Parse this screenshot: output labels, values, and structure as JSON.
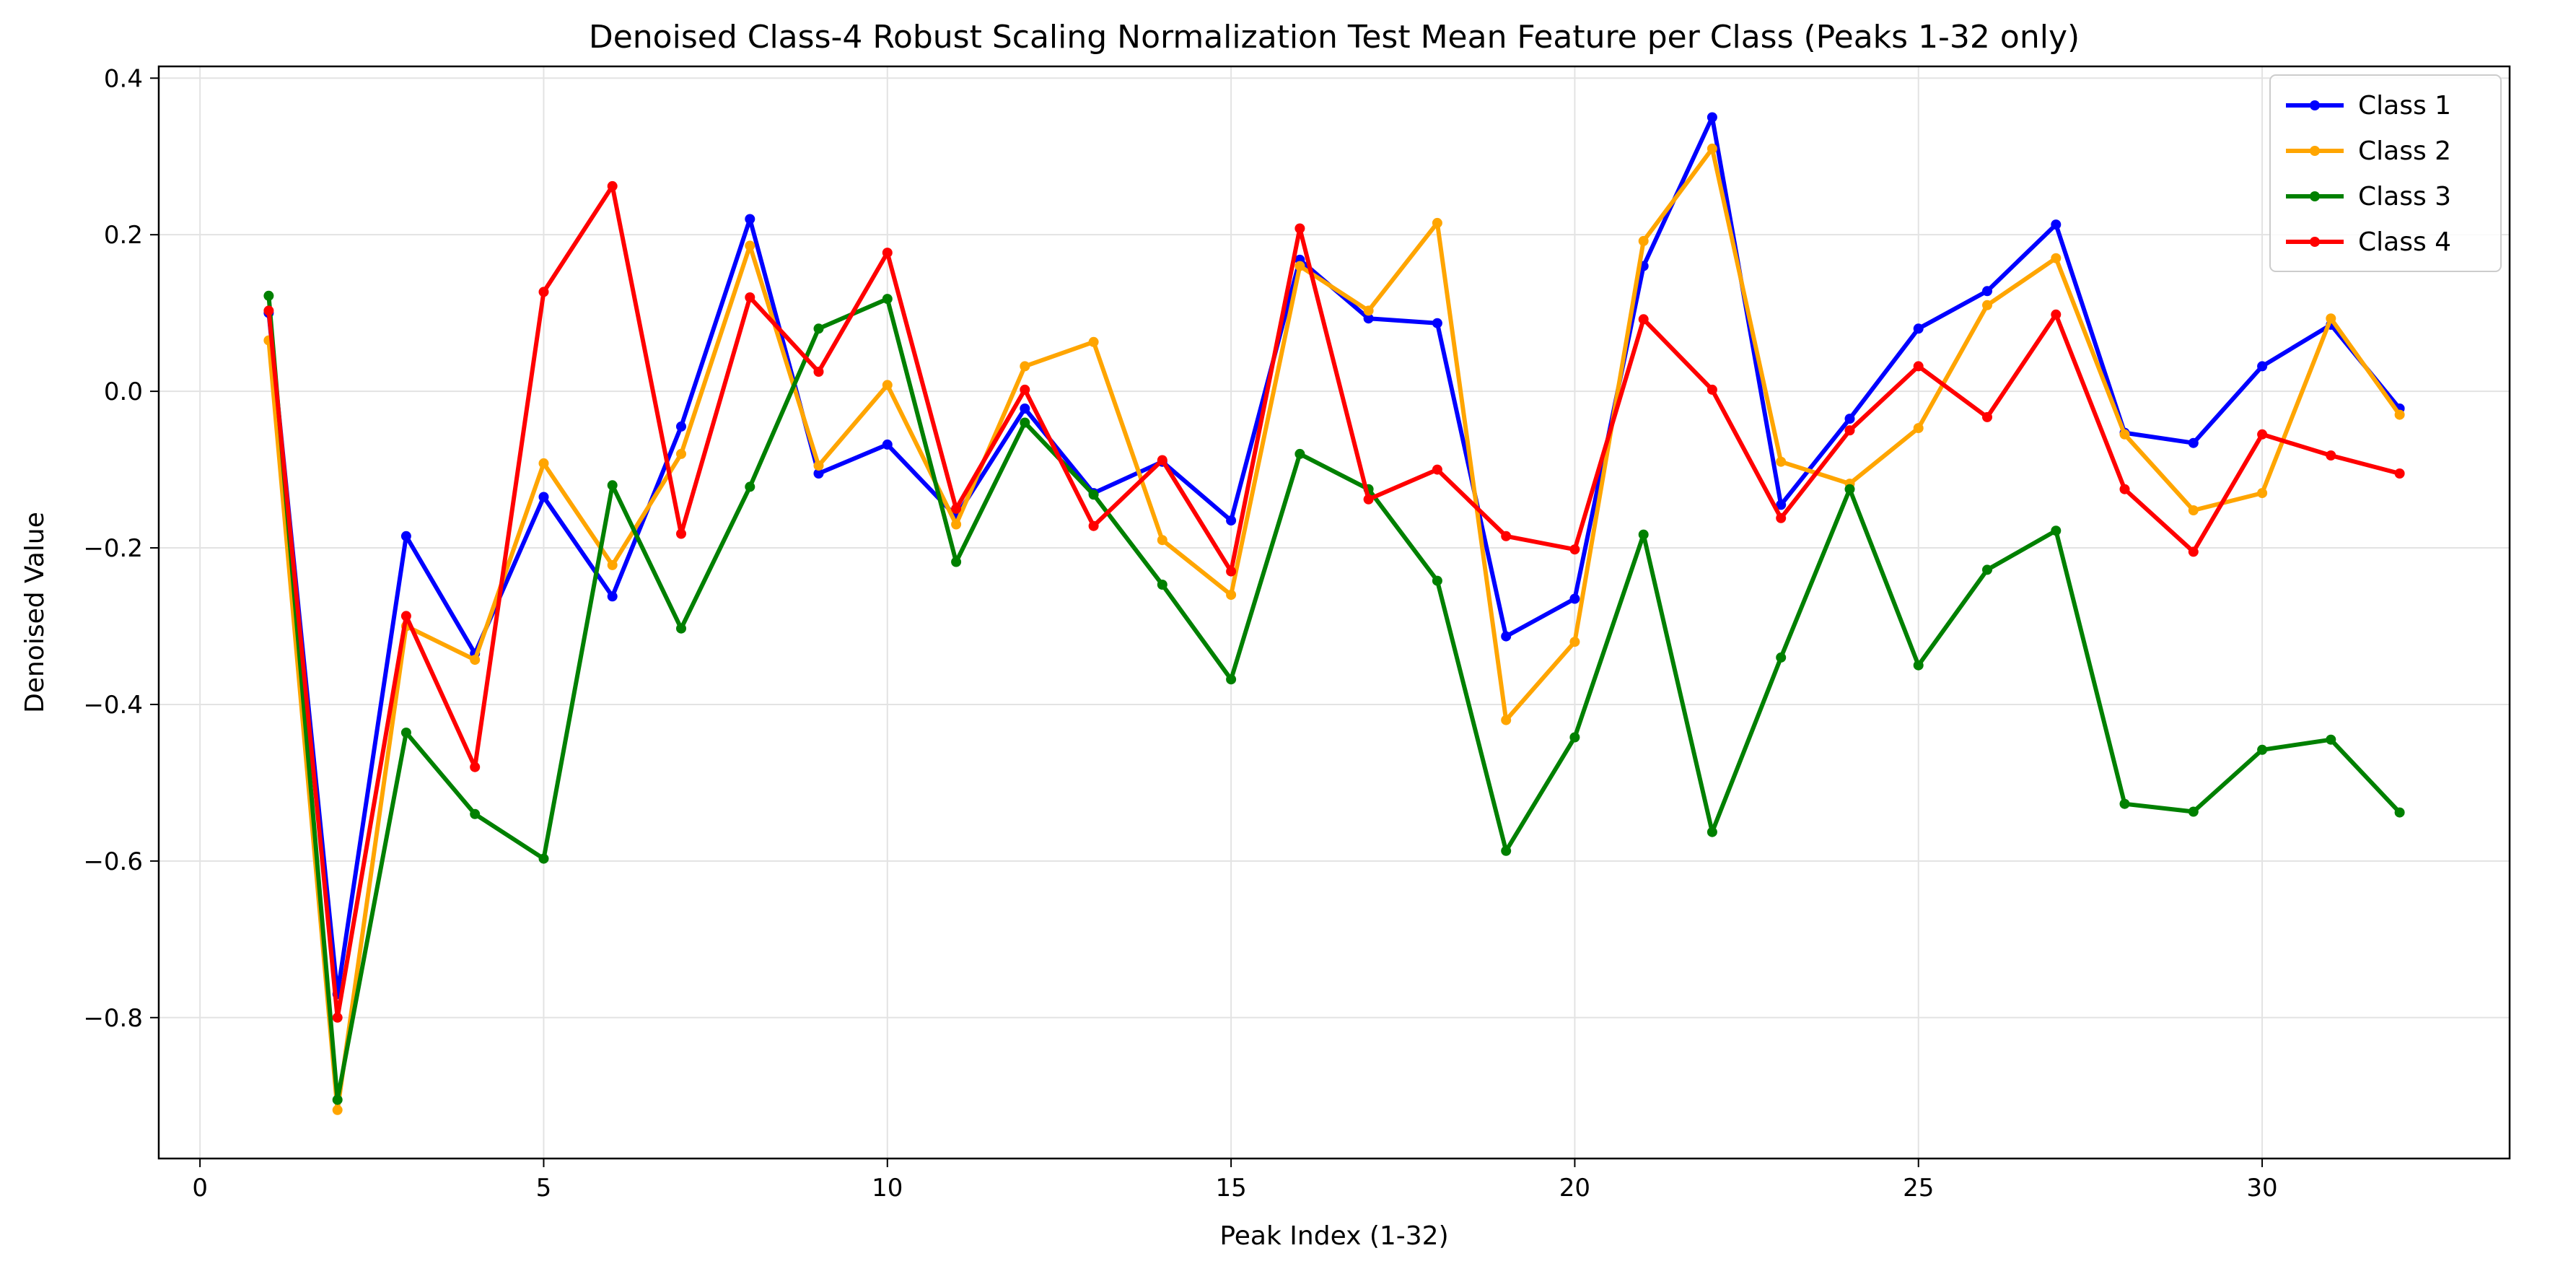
{
  "chart_data": {
    "type": "line",
    "title": "Denoised Class-4 Robust Scaling Normalization Test Mean Feature per Class (Peaks 1-32 only)",
    "xlabel": "Peak Index (1-32)",
    "ylabel": "Denoised Value",
    "xlim": [
      -0.6,
      33.6
    ],
    "ylim": [
      -0.98,
      0.415
    ],
    "xticks": [
      0,
      5,
      10,
      15,
      20,
      25,
      30
    ],
    "yticks": [
      -0.8,
      -0.6,
      -0.4,
      -0.2,
      0.0,
      0.2,
      0.4
    ],
    "ytick_labels": [
      "−0.8",
      "−0.6",
      "−0.4",
      "−0.2",
      "0.0",
      "0.2",
      "0.4"
    ],
    "grid": true,
    "legend_position": "top-right",
    "x": [
      1,
      2,
      3,
      4,
      5,
      6,
      7,
      8,
      9,
      10,
      11,
      12,
      13,
      14,
      15,
      16,
      17,
      18,
      19,
      20,
      21,
      22,
      23,
      24,
      25,
      26,
      27,
      28,
      29,
      30,
      31,
      32
    ],
    "series": [
      {
        "name": "Class 1",
        "color": "#0000ff",
        "values": [
          0.1,
          -0.77,
          -0.185,
          -0.335,
          -0.135,
          -0.262,
          -0.045,
          0.22,
          -0.105,
          -0.068,
          -0.16,
          -0.022,
          -0.13,
          -0.09,
          -0.165,
          0.168,
          0.093,
          0.087,
          -0.313,
          -0.265,
          0.16,
          0.35,
          -0.145,
          -0.035,
          0.08,
          0.128,
          0.213,
          -0.053,
          -0.066,
          0.032,
          0.085,
          -0.022
        ]
      },
      {
        "name": "Class 2",
        "color": "#ffa500",
        "values": [
          0.065,
          -0.918,
          -0.3,
          -0.343,
          -0.092,
          -0.222,
          -0.08,
          0.186,
          -0.095,
          0.008,
          -0.17,
          0.032,
          0.063,
          -0.19,
          -0.26,
          0.16,
          0.103,
          0.215,
          -0.42,
          -0.32,
          0.192,
          0.31,
          -0.09,
          -0.118,
          -0.047,
          0.11,
          0.17,
          -0.055,
          -0.152,
          -0.13,
          0.093,
          -0.03
        ]
      },
      {
        "name": "Class 3",
        "color": "#008000",
        "values": [
          0.122,
          -0.905,
          -0.436,
          -0.54,
          -0.597,
          -0.12,
          -0.303,
          -0.122,
          0.08,
          0.118,
          -0.218,
          -0.04,
          -0.132,
          -0.247,
          -0.368,
          -0.08,
          -0.125,
          -0.242,
          -0.587,
          -0.442,
          -0.183,
          -0.563,
          -0.34,
          -0.125,
          -0.35,
          -0.228,
          -0.178,
          -0.527,
          -0.537,
          -0.458,
          -0.445,
          -0.538
        ]
      },
      {
        "name": "Class 4",
        "color": "#ff0000",
        "values": [
          0.103,
          -0.8,
          -0.287,
          -0.48,
          0.127,
          0.262,
          -0.182,
          0.12,
          0.025,
          0.177,
          -0.15,
          0.002,
          -0.172,
          -0.088,
          -0.23,
          0.208,
          -0.138,
          -0.1,
          -0.185,
          -0.202,
          0.092,
          0.002,
          -0.162,
          -0.05,
          0.032,
          -0.033,
          0.098,
          -0.125,
          -0.205,
          -0.055,
          -0.082,
          -0.105
        ]
      }
    ]
  }
}
